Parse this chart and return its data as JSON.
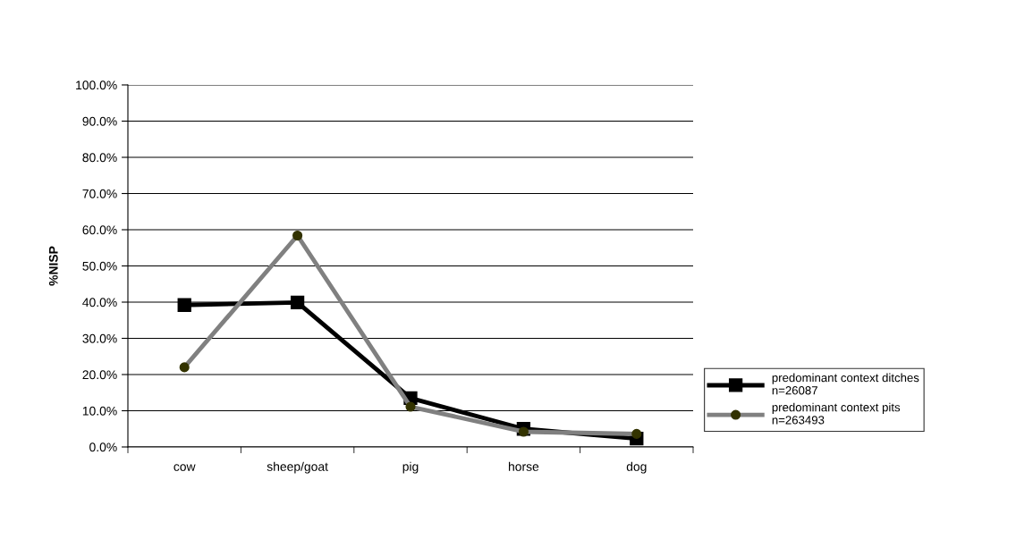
{
  "chart_data": {
    "type": "line",
    "ylabel": "%NISP",
    "categories": [
      "cow",
      "sheep/goat",
      "pig",
      "horse",
      "dog"
    ],
    "series": [
      {
        "name": "predominant context ditches\nn=26087",
        "color": "#000000",
        "marker": "square",
        "values": [
          39.2,
          39.9,
          13.5,
          5.0,
          2.3
        ]
      },
      {
        "name": "predominant context pits\nn=263493",
        "color": "#808080",
        "marker": "circle",
        "values": [
          22.0,
          58.4,
          11.1,
          4.2,
          3.6
        ]
      }
    ],
    "ylim": [
      0,
      100
    ],
    "yticks": [
      {
        "value": 0,
        "label": "0.0%"
      },
      {
        "value": 10,
        "label": "10.0%"
      },
      {
        "value": 20,
        "label": "20.0%"
      },
      {
        "value": 30,
        "label": "30.0%"
      },
      {
        "value": 40,
        "label": "40.0%"
      },
      {
        "value": 50,
        "label": "50.0%"
      },
      {
        "value": 60,
        "label": "60.0%"
      },
      {
        "value": 70,
        "label": "70.0%"
      },
      {
        "value": 80,
        "label": "80.0%"
      },
      {
        "value": 90,
        "label": "90.0%"
      },
      {
        "value": 100,
        "label": "100.0%"
      }
    ],
    "grid": "y",
    "legend": "right",
    "line_style": "solid"
  }
}
